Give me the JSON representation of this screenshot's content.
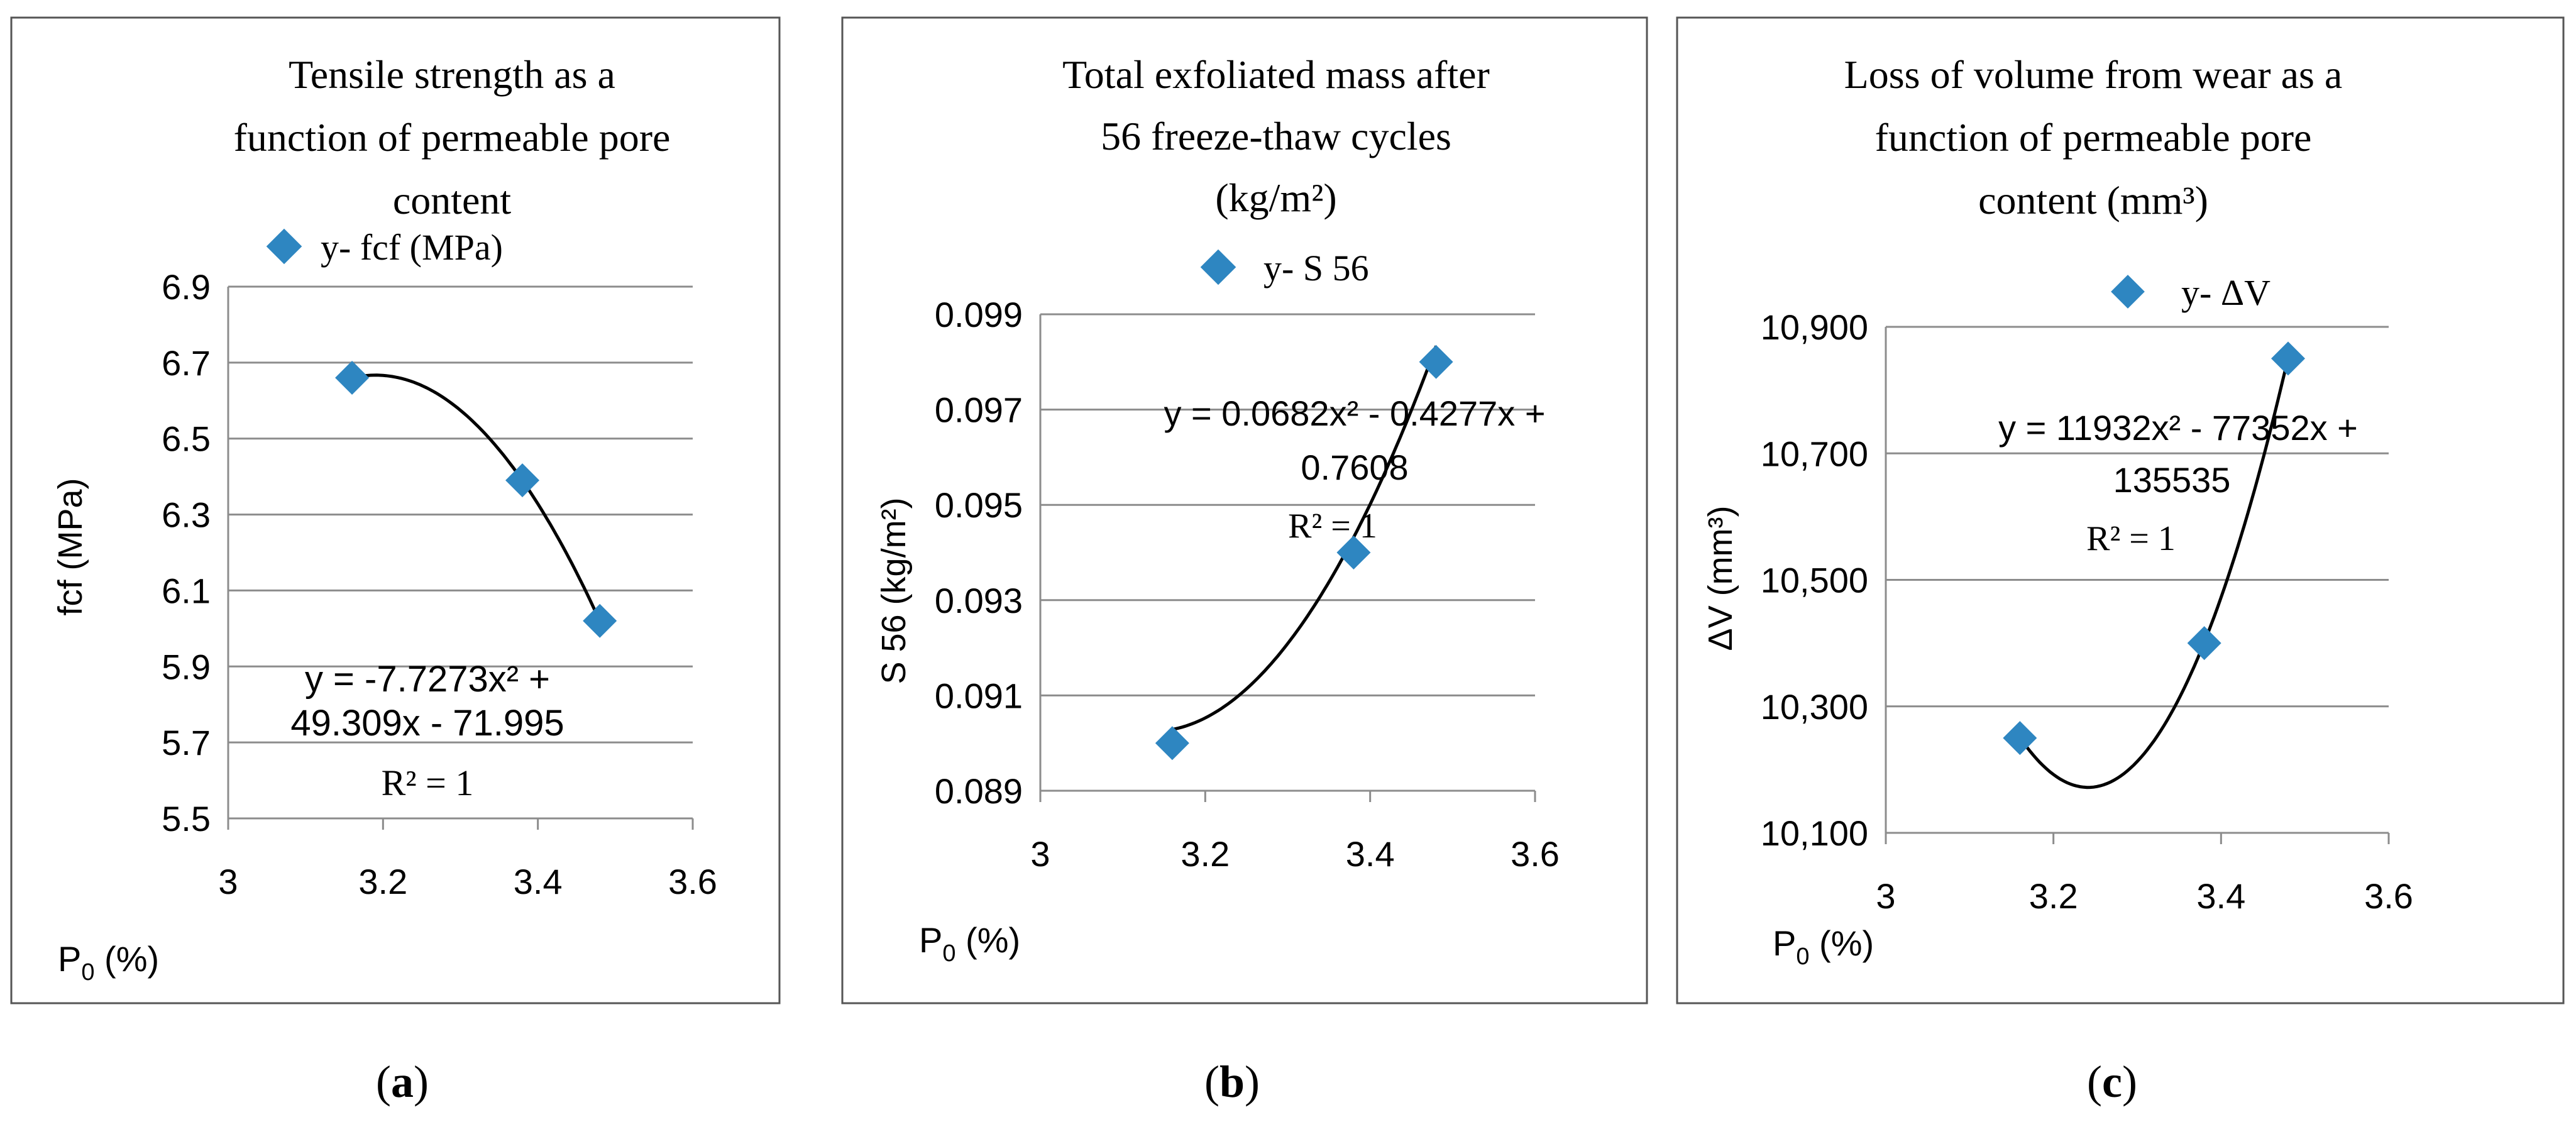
{
  "chart_data": [
    {
      "type": "scatter",
      "panel_label": "a",
      "title_lines": [
        "Tensile strength as a",
        "function of permeable pore",
        "content"
      ],
      "legend": "y- fcf (MPa)",
      "xlabel": "P0 (%)",
      "ylabel": "fcf (MPa)",
      "xlim": [
        3,
        3.6
      ],
      "ylim": [
        5.5,
        6.9
      ],
      "x_ticks": [
        "3",
        "3.2",
        "3.4",
        "3.6"
      ],
      "y_ticks": [
        "5.5",
        "5.7",
        "5.9",
        "6.1",
        "6.3",
        "6.5",
        "6.7",
        "6.9"
      ],
      "x_tick_values": [
        3,
        3.2,
        3.4,
        3.6
      ],
      "y_tick_values": [
        5.5,
        5.7,
        5.9,
        6.1,
        6.3,
        6.5,
        6.7,
        6.9
      ],
      "points": [
        {
          "x": 3.16,
          "y": 6.66
        },
        {
          "x": 3.38,
          "y": 6.39
        },
        {
          "x": 3.48,
          "y": 6.02
        }
      ],
      "trendline": {
        "type": "polynomial",
        "coefficients": [
          -7.7273,
          49.309,
          -71.995
        ],
        "x_range": [
          3.16,
          3.48
        ]
      },
      "equation_lines": [
        "y = -7.7273x² +",
        "49.309x - 71.995",
        "R² = 1"
      ]
    },
    {
      "type": "scatter",
      "panel_label": "b",
      "title_lines": [
        "Total exfoliated mass after",
        "56 freeze-thaw cycles",
        "(kg/m²)"
      ],
      "legend": "y- S 56",
      "xlabel": "P0 (%)",
      "ylabel": "S 56  (kg/m²)",
      "xlim": [
        3,
        3.6
      ],
      "ylim": [
        0.089,
        0.099
      ],
      "x_ticks": [
        "3",
        "3.2",
        "3.4",
        "3.6"
      ],
      "y_ticks": [
        "0.089",
        "0.091",
        "0.093",
        "0.095",
        "0.097",
        "0.099"
      ],
      "x_tick_values": [
        3,
        3.2,
        3.4,
        3.6
      ],
      "y_tick_values": [
        0.089,
        0.091,
        0.093,
        0.095,
        0.097,
        0.099
      ],
      "points": [
        {
          "x": 3.16,
          "y": 0.09
        },
        {
          "x": 3.38,
          "y": 0.094
        },
        {
          "x": 3.48,
          "y": 0.098
        }
      ],
      "trendline": {
        "type": "polynomial",
        "coefficients": [
          0.0682,
          -0.4277,
          0.7608
        ],
        "x_range": [
          3.16,
          3.48
        ]
      },
      "equation_lines": [
        "y = 0.0682x² - 0.4277x +",
        "0.7608",
        "R² = 1"
      ]
    },
    {
      "type": "scatter",
      "panel_label": "c",
      "title_lines": [
        "Loss of volume from wear as a",
        "function of permeable pore",
        "content (mm³)"
      ],
      "legend": "y- ΔV",
      "xlabel": "P0 (%)",
      "ylabel": "ΔV (mm³)",
      "xlim": [
        3,
        3.6
      ],
      "ylim": [
        10100,
        10900
      ],
      "x_ticks": [
        "3",
        "3.2",
        "3.4",
        "3.6"
      ],
      "y_ticks": [
        "10,100",
        "10,300",
        "10,500",
        "10,700",
        "10,900"
      ],
      "x_tick_values": [
        3,
        3.2,
        3.4,
        3.6
      ],
      "y_tick_values": [
        10100,
        10300,
        10500,
        10700,
        10900
      ],
      "points": [
        {
          "x": 3.16,
          "y": 10250
        },
        {
          "x": 3.38,
          "y": 10400
        },
        {
          "x": 3.48,
          "y": 10850
        }
      ],
      "trendline": {
        "type": "polynomial",
        "coefficients": [
          11932,
          -77352,
          135535
        ],
        "x_range": [
          3.16,
          3.48
        ]
      },
      "equation_lines": [
        "y = 11932x² - 77352x +",
        "135535",
        "R² = 1"
      ]
    }
  ],
  "colors": {
    "marker": "#2E86C1",
    "grid": "#8c8c8c",
    "axis": "#8c8c8c",
    "trendline": "#000000",
    "text": "#000000",
    "frame": "#555555"
  },
  "xlabel_parts": {
    "main": "P",
    "sub": "0",
    "rest": " (%)"
  },
  "panel_labels": [
    "a",
    "b",
    "c"
  ]
}
